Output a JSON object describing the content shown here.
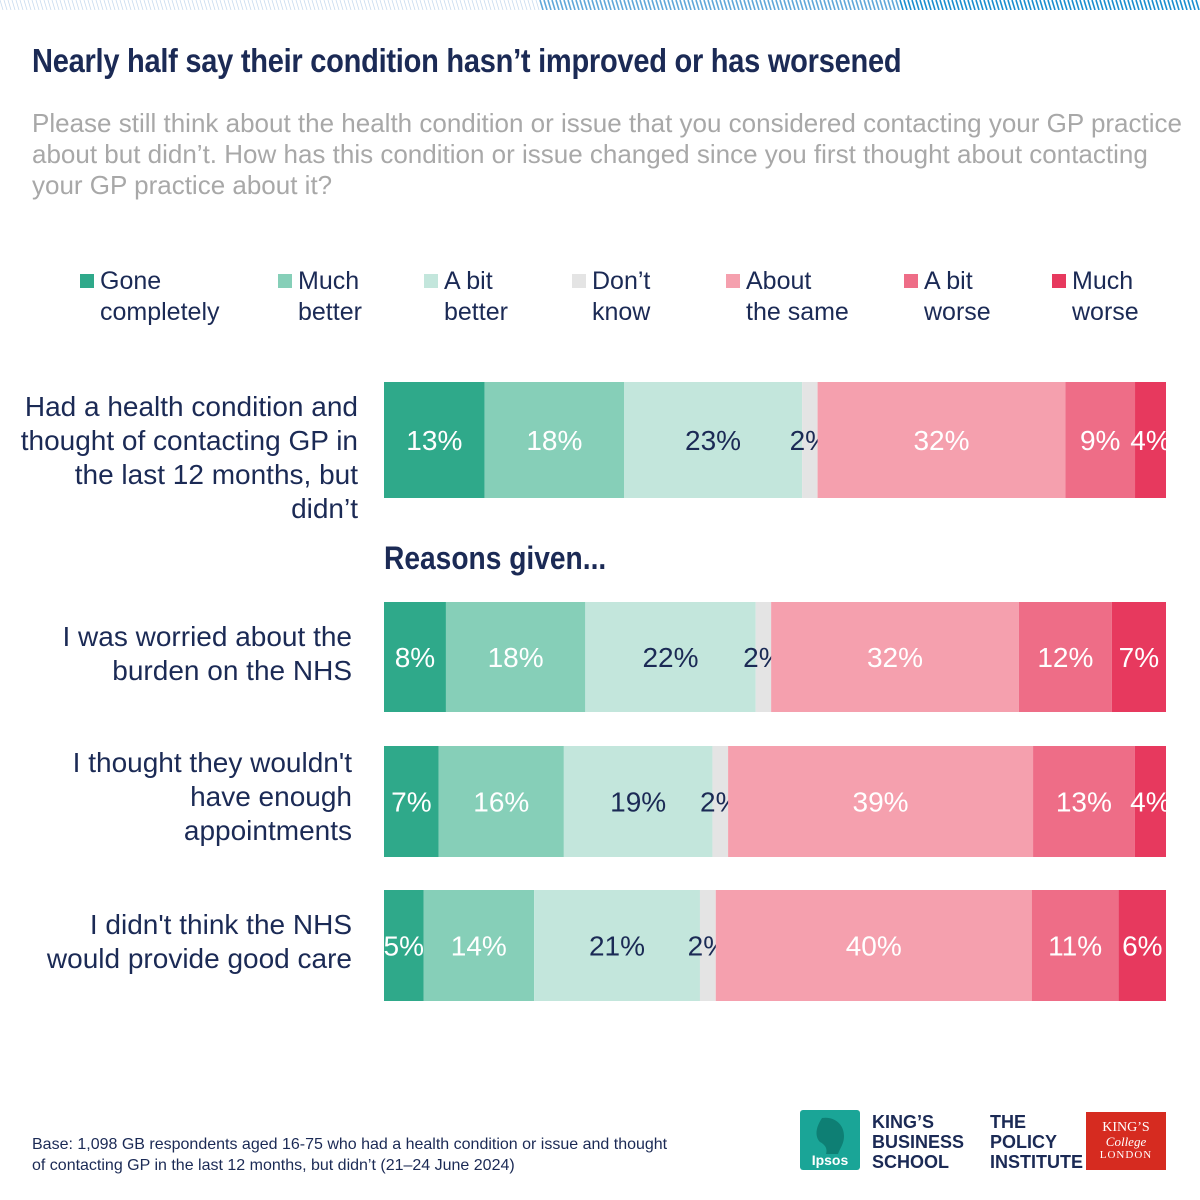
{
  "title": "Nearly half say their condition hasn’t improved or has worsened",
  "question": "Please still think about the health condition or issue that you considered contacting your GP practice about but didn’t. How has this condition or issue changed since you first thought about contacting your GP practice about it?",
  "reasons_heading": "Reasons given...",
  "footnote": "Base: 1,098 GB respondents aged 16-75 who had a health condition or issue and thought of contacting GP in the last 12 months, but didn’t (21–24 June 2024)",
  "logos": {
    "ipsos": "Ipsos",
    "kbs": "KING’S\nBUSINESS\nSCHOOL",
    "tpi": "THE\nPOLICY\nINSTITUTE",
    "kcl_line1": "KING’S",
    "kcl_line2": "College",
    "kcl_line3": "LONDON"
  },
  "colors": {
    "title": "#1b2a55",
    "question": "#a8a8a8",
    "ipsos": "#1aa597",
    "kcl": "#d62b20"
  },
  "chart_data": {
    "type": "bar",
    "orientation": "horizontal",
    "stacked": true,
    "normalized_to": 100,
    "unit": "%",
    "legend_position": "top",
    "categories": [
      "Had a health condition and thought of contacting GP in the last 12 months, but didn’t",
      "I was worried about the burden on the NHS",
      "I thought they wouldn't have enough appointments",
      "I didn't think the NHS would provide good care"
    ],
    "series": [
      {
        "name": "Gone completely",
        "color": "#2fa98a",
        "label_color": "#ffffff",
        "values": [
          13,
          8,
          7,
          5
        ]
      },
      {
        "name": "Much better",
        "color": "#86cfb8",
        "label_color": "#ffffff",
        "values": [
          18,
          18,
          16,
          14
        ]
      },
      {
        "name": "A bit better",
        "color": "#c3e6dc",
        "label_color": "#1b2a55",
        "values": [
          23,
          22,
          19,
          21
        ]
      },
      {
        "name": "Don’t know",
        "color": "#e4e4e4",
        "label_color": "#1b2a55",
        "values": [
          2,
          2,
          2,
          2
        ]
      },
      {
        "name": "About the same",
        "color": "#f5a0ae",
        "label_color": "#ffffff",
        "values": [
          32,
          32,
          39,
          40
        ]
      },
      {
        "name": "A bit worse",
        "color": "#ee6d87",
        "label_color": "#ffffff",
        "values": [
          9,
          12,
          13,
          11
        ]
      },
      {
        "name": "Much worse",
        "color": "#e7395e",
        "label_color": "#ffffff",
        "values": [
          4,
          7,
          4,
          6
        ]
      }
    ],
    "data_labels": [
      [
        "13%",
        "18%",
        "23%",
        "2%",
        "32%",
        "9%",
        "4%"
      ],
      [
        "8%",
        "18%",
        "22%",
        "2%",
        "32%",
        "12%",
        "7%"
      ],
      [
        "7%",
        "16%",
        "19%",
        "2%",
        "39%",
        "13%",
        "4%"
      ],
      [
        "5%",
        "14%",
        "21%",
        "2%",
        "40%",
        "11%",
        "6%"
      ]
    ]
  }
}
